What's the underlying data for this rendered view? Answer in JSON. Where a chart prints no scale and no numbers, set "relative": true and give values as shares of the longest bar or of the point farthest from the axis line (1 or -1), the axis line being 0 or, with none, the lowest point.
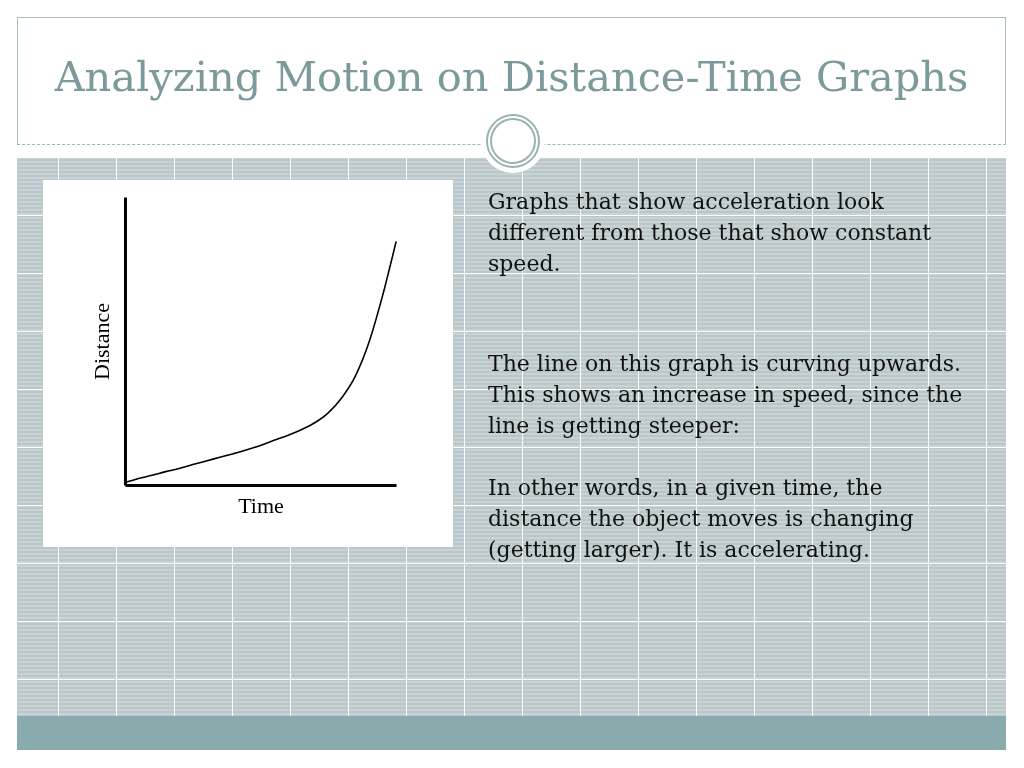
{
  "chart_data": {
    "type": "line",
    "title": "Analyzing Motion on Distance-Time Graphs",
    "xlabel": "Time",
    "ylabel": "Distance",
    "categories": [
      null,
      null,
      null,
      null,
      null,
      null,
      null,
      null,
      null,
      null,
      null,
      null,
      null,
      null,
      null,
      null,
      null,
      null,
      null,
      null,
      null
    ],
    "values": [
      0.01,
      0.027,
      0.04,
      0.055,
      0.068,
      0.084,
      0.099,
      0.114,
      0.129,
      0.145,
      0.163,
      0.184,
      0.204,
      0.227,
      0.256,
      0.297,
      0.359,
      0.448,
      0.586,
      0.777,
      1.0
    ],
    "relative": true,
    "color": "#000000",
    "marker": "none",
    "line_style": "solid",
    "grid": false,
    "annotations": [
      "Graphs that show acceleration look different from those that show constant speed.",
      "The line on this graph is curving upwards. This shows an increase in speed, since the line is getting steeper:",
      "In other words, in a given time, the distance the object moves is changing (getting larger).  It is accelerating."
    ]
  }
}
